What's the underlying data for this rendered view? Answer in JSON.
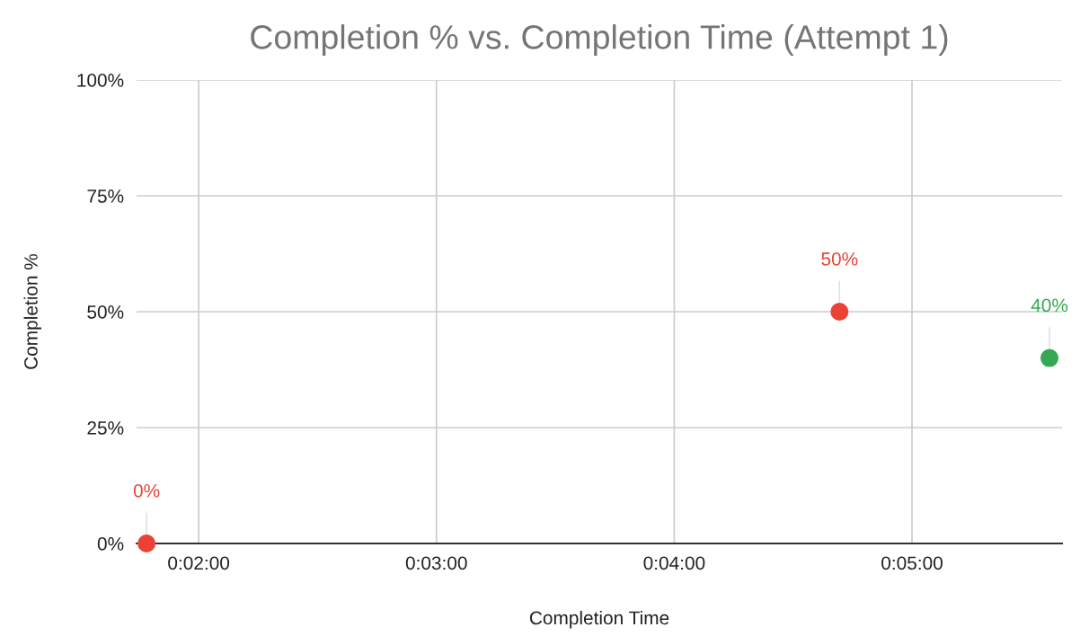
{
  "chart_data": {
    "type": "scatter",
    "title": "Completion % vs. Completion Time (Attempt 1)",
    "xlabel": "Completion Time",
    "ylabel": "Completion %",
    "x": [
      0.02968,
      0.07825,
      0.09297
    ],
    "values": [
      0,
      50,
      40
    ],
    "colors": [
      "#ea4335",
      "#ea4335",
      "#34a853"
    ],
    "value_labels": [
      "0%",
      "50%",
      "40%"
    ],
    "xlim": [
      0.02898,
      0.09385
    ],
    "xticks": [
      {
        "value": 0.033333,
        "label": "0:02:00"
      },
      {
        "value": 0.05,
        "label": "0:03:00"
      },
      {
        "value": 0.066667,
        "label": "0:04:00"
      },
      {
        "value": 0.083333,
        "label": "0:05:00"
      }
    ],
    "ylim": [
      0,
      100
    ],
    "yticks": [
      {
        "value": 0,
        "label": "0%"
      },
      {
        "value": 25,
        "label": "25%"
      },
      {
        "value": 50,
        "label": "50%"
      },
      {
        "value": 75,
        "label": "75%"
      },
      {
        "value": 100,
        "label": "100%"
      }
    ],
    "grid": true,
    "marker": "circle"
  }
}
